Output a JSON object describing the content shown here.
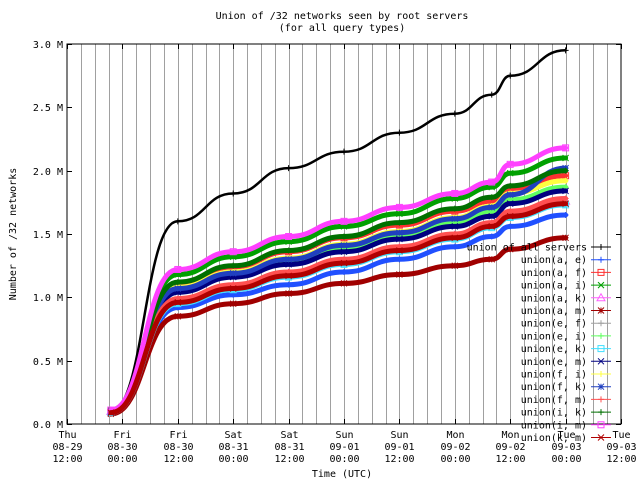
{
  "chart_data": {
    "type": "line",
    "title": "Union of /32 networks seen by root servers",
    "subtitle": "(for all query types)",
    "xlabel": "Time (UTC)",
    "ylabel": "Number of /32 networks",
    "ylim": [
      0,
      3.0
    ],
    "y_unit": "M",
    "y_ticks": [
      "0.0 M",
      "0.5 M",
      "1.0 M",
      "1.5 M",
      "2.0 M",
      "2.5 M",
      "3.0 M"
    ],
    "x_range_hours": [
      0,
      120
    ],
    "x_ticks": [
      {
        "day": "Thu",
        "date": "08-29",
        "time": "12:00"
      },
      {
        "day": "Fri",
        "date": "08-30",
        "time": "00:00"
      },
      {
        "day": "Fri",
        "date": "08-30",
        "time": "12:00"
      },
      {
        "day": "Sat",
        "date": "08-31",
        "time": "00:00"
      },
      {
        "day": "Sat",
        "date": "08-31",
        "time": "12:00"
      },
      {
        "day": "Sun",
        "date": "09-01",
        "time": "00:00"
      },
      {
        "day": "Sun",
        "date": "09-01",
        "time": "12:00"
      },
      {
        "day": "Mon",
        "date": "09-02",
        "time": "00:00"
      },
      {
        "day": "Mon",
        "date": "09-02",
        "time": "12:00"
      },
      {
        "day": "Tue",
        "date": "09-03",
        "time": "00:00"
      },
      {
        "day": "Tue",
        "date": "09-03",
        "time": "12:00"
      }
    ],
    "x_points": [
      "2002-08-29 21:30",
      "2002-08-30 12:00",
      "2002-08-31 00:00",
      "2002-08-31 12:00",
      "2002-09-01 00:00",
      "2002-09-01 12:00",
      "2002-09-02 00:00",
      "2002-09-02 08:00",
      "2002-09-02 12:00",
      "2002-09-03 00:00"
    ],
    "legend_position": "right",
    "grid": true,
    "series": [
      {
        "name": "union of all servers",
        "color": "#000000",
        "marker": "plus",
        "values": [
          0.1,
          1.6,
          1.82,
          2.02,
          2.15,
          2.3,
          2.45,
          2.6,
          2.75,
          2.95
        ]
      },
      {
        "name": "union(a, e)",
        "color": "#2050ff",
        "marker": "plus",
        "values": [
          0.09,
          0.92,
          1.02,
          1.1,
          1.2,
          1.3,
          1.4,
          1.48,
          1.56,
          1.65
        ]
      },
      {
        "name": "union(a, f)",
        "color": "#ff3030",
        "marker": "square",
        "values": [
          0.1,
          1.1,
          1.24,
          1.36,
          1.47,
          1.57,
          1.68,
          1.76,
          1.86,
          1.96
        ]
      },
      {
        "name": "union(a, i)",
        "color": "#00a000",
        "marker": "cross",
        "values": [
          0.11,
          1.18,
          1.32,
          1.44,
          1.56,
          1.66,
          1.78,
          1.87,
          1.98,
          2.1
        ]
      },
      {
        "name": "union(a, k)",
        "color": "#ff60ff",
        "marker": "triangle",
        "values": [
          0.1,
          0.98,
          1.09,
          1.19,
          1.29,
          1.39,
          1.49,
          1.58,
          1.66,
          1.76
        ]
      },
      {
        "name": "union(a, m)",
        "color": "#a00000",
        "marker": "star",
        "values": [
          0.08,
          0.85,
          0.95,
          1.03,
          1.11,
          1.18,
          1.25,
          1.3,
          1.38,
          1.47
        ]
      },
      {
        "name": "union(e, f)",
        "color": "#a0a0a0",
        "marker": "plus",
        "values": [
          0.09,
          0.97,
          1.08,
          1.18,
          1.28,
          1.38,
          1.48,
          1.57,
          1.65,
          1.75
        ]
      },
      {
        "name": "union(e, i)",
        "color": "#60ff60",
        "marker": "plus",
        "values": [
          0.1,
          1.05,
          1.17,
          1.28,
          1.39,
          1.49,
          1.59,
          1.68,
          1.77,
          1.87
        ]
      },
      {
        "name": "union(e, k)",
        "color": "#40e0ff",
        "marker": "square",
        "values": [
          0.09,
          0.95,
          1.06,
          1.16,
          1.26,
          1.36,
          1.46,
          1.55,
          1.63,
          1.73
        ]
      },
      {
        "name": "union(e, m)",
        "color": "#000080",
        "marker": "cross",
        "values": [
          0.09,
          1.04,
          1.16,
          1.26,
          1.36,
          1.46,
          1.56,
          1.64,
          1.74,
          1.84
        ]
      },
      {
        "name": "union(f, i)",
        "color": "#ffff40",
        "marker": "plus",
        "values": [
          0.1,
          1.08,
          1.2,
          1.31,
          1.42,
          1.52,
          1.63,
          1.72,
          1.82,
          1.92
        ]
      },
      {
        "name": "union(f, k)",
        "color": "#2040c0",
        "marker": "star",
        "values": [
          0.1,
          1.07,
          1.19,
          1.3,
          1.41,
          1.51,
          1.62,
          1.71,
          1.81,
          2.02
        ]
      },
      {
        "name": "union(f, m)",
        "color": "#ff5050",
        "marker": "plus",
        "values": [
          0.09,
          0.99,
          1.1,
          1.2,
          1.3,
          1.4,
          1.5,
          1.59,
          1.68,
          1.78
        ]
      },
      {
        "name": "union(i, k)",
        "color": "#007000",
        "marker": "plus",
        "values": [
          0.1,
          1.12,
          1.25,
          1.37,
          1.48,
          1.59,
          1.7,
          1.79,
          1.88,
          2.0
        ]
      },
      {
        "name": "union(i, m)",
        "color": "#ff40ff",
        "marker": "square",
        "values": [
          0.11,
          1.22,
          1.36,
          1.48,
          1.6,
          1.71,
          1.82,
          1.91,
          2.05,
          2.18
        ]
      },
      {
        "name": "union(k, m)",
        "color": "#b00000",
        "marker": "cross",
        "values": [
          0.09,
          0.96,
          1.07,
          1.17,
          1.27,
          1.37,
          1.47,
          1.56,
          1.64,
          1.74
        ]
      }
    ]
  }
}
